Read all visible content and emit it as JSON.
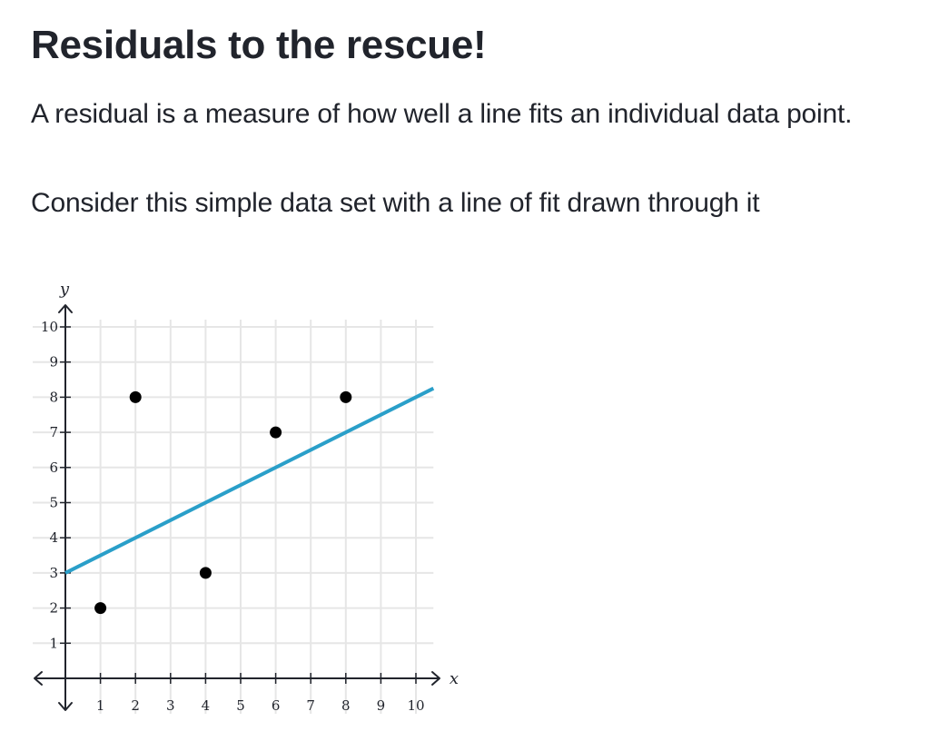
{
  "heading": "Residuals to the rescue!",
  "paragraph1": "A residual is a measure of how well a line fits an individual data point.",
  "paragraph2": "Consider this simple data set with a line of fit drawn through it",
  "chart_data": {
    "type": "scatter",
    "title": "",
    "xlabel": "x",
    "ylabel": "y",
    "xlim": [
      0,
      10.5
    ],
    "ylim": [
      0,
      10
    ],
    "xticks": [
      1,
      2,
      3,
      4,
      5,
      6,
      7,
      8,
      9,
      10
    ],
    "yticks": [
      1,
      2,
      3,
      4,
      5,
      6,
      7,
      8,
      9,
      10
    ],
    "grid": true,
    "series": [
      {
        "type": "scatter",
        "color": "#000000",
        "points": [
          {
            "x": 1,
            "y": 2
          },
          {
            "x": 2,
            "y": 8
          },
          {
            "x": 4,
            "y": 3
          },
          {
            "x": 6,
            "y": 7
          },
          {
            "x": 8,
            "y": 8
          }
        ]
      },
      {
        "type": "line",
        "color": "#2a9fc9",
        "points": [
          {
            "x": 0,
            "y": 3
          },
          {
            "x": 10.5,
            "y": 8.25
          }
        ]
      }
    ]
  }
}
